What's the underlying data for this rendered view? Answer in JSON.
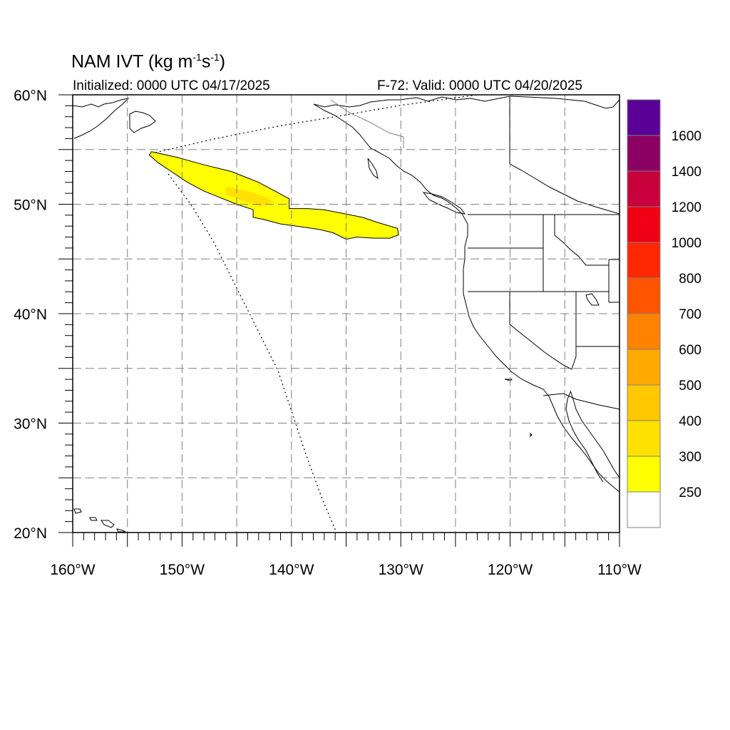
{
  "title": {
    "main": "NAM IVT (kg m",
    "sup1": "-1",
    "mid": "s",
    "sup2": "-1",
    "end": ")"
  },
  "initialized": "Initialized: 0000 UTC 04/17/2025",
  "valid": "F-72: Valid: 0000 UTC 04/20/2025",
  "chart_data": {
    "type": "heatmap",
    "variable": "IVT",
    "units": "kg m-1s-1",
    "lon_range": [
      -160,
      -110
    ],
    "lat_range": [
      20,
      60
    ],
    "lon_ticks": [
      {
        "value": -160,
        "label": "160°W"
      },
      {
        "value": -150,
        "label": "150°W"
      },
      {
        "value": -140,
        "label": "140°W"
      },
      {
        "value": -130,
        "label": "130°W"
      },
      {
        "value": -120,
        "label": "120°W"
      },
      {
        "value": -110,
        "label": "110°W"
      }
    ],
    "lat_ticks": [
      {
        "value": 60,
        "label": "60°N"
      },
      {
        "value": 50,
        "label": "50°N"
      },
      {
        "value": 40,
        "label": "40°N"
      },
      {
        "value": 30,
        "label": "30°N"
      },
      {
        "value": 20,
        "label": "20°N"
      }
    ],
    "grid": true,
    "colorbar": {
      "levels": [
        250,
        300,
        400,
        500,
        600,
        700,
        800,
        1000,
        1200,
        1400,
        1600
      ],
      "labels": [
        "250",
        "300",
        "400",
        "500",
        "600",
        "700",
        "800",
        "1000",
        "1200",
        "1400",
        "1600"
      ],
      "colors": [
        "#ffffff",
        "#ffff00",
        "#ffe100",
        "#ffc800",
        "#ffaa00",
        "#ff8200",
        "#ff5500",
        "#ff2800",
        "#f00014",
        "#c8003c",
        "#8c0064",
        "#5a0096"
      ]
    },
    "ivt_plume": {
      "max_band": "300-400",
      "outline_lonlat": [
        [
          -152.8,
          54.8
        ],
        [
          -150.5,
          54.3
        ],
        [
          -148.0,
          53.6
        ],
        [
          -145.5,
          53.0
        ],
        [
          -143.0,
          52.0
        ],
        [
          -141.5,
          51.2
        ],
        [
          -140.2,
          50.5
        ],
        [
          -140.2,
          49.6
        ],
        [
          -138.5,
          49.6
        ],
        [
          -137.0,
          49.5
        ],
        [
          -135.0,
          49.1
        ],
        [
          -133.5,
          48.8
        ],
        [
          -132.0,
          48.3
        ],
        [
          -130.3,
          47.8
        ],
        [
          -130.2,
          47.2
        ],
        [
          -131.0,
          46.9
        ],
        [
          -132.5,
          46.9
        ],
        [
          -134.0,
          47.0
        ],
        [
          -135.0,
          46.8
        ],
        [
          -136.2,
          47.4
        ],
        [
          -137.5,
          47.7
        ],
        [
          -139.5,
          48.0
        ],
        [
          -141.0,
          48.2
        ],
        [
          -142.5,
          48.6
        ],
        [
          -143.5,
          48.8
        ],
        [
          -143.5,
          49.5
        ],
        [
          -145.0,
          50.0
        ],
        [
          -146.5,
          50.6
        ],
        [
          -148.0,
          51.2
        ],
        [
          -149.5,
          52.0
        ],
        [
          -151.0,
          53.0
        ],
        [
          -152.2,
          53.8
        ],
        [
          -153.0,
          54.5
        ]
      ],
      "core_lonlat": [
        [
          -146.0,
          51.6
        ],
        [
          -144.0,
          51.2
        ],
        [
          -142.5,
          50.7
        ],
        [
          -141.6,
          50.2
        ],
        [
          -142.8,
          49.8
        ],
        [
          -144.5,
          50.3
        ],
        [
          -146.0,
          50.9
        ]
      ]
    }
  }
}
